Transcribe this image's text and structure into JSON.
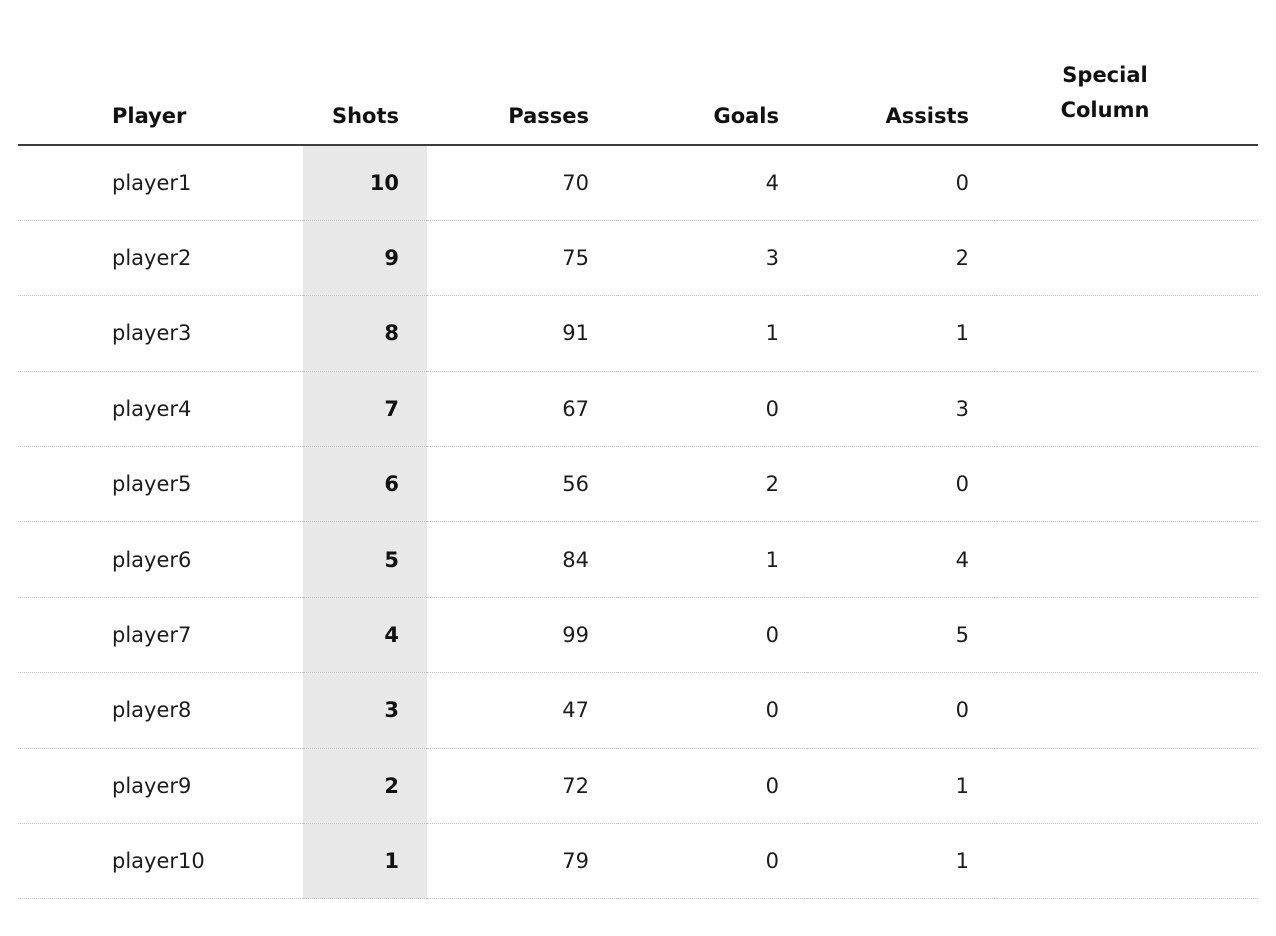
{
  "colors": {
    "highlight_column_bg": "#e8e8e8",
    "header_rule": "#3d3d3d",
    "row_divider": "#c4c4c4",
    "text": "#1c1c1c"
  },
  "table": {
    "columns": [
      {
        "key": "player",
        "label": "Player"
      },
      {
        "key": "shots",
        "label": "Shots"
      },
      {
        "key": "passes",
        "label": "Passes"
      },
      {
        "key": "goals",
        "label": "Goals"
      },
      {
        "key": "assists",
        "label": "Assists"
      },
      {
        "key": "special",
        "label": "Special\nColumn"
      }
    ],
    "rows": [
      {
        "player": "player1",
        "shots": "10",
        "passes": "70",
        "goals": "4",
        "assists": "0",
        "special": ""
      },
      {
        "player": "player2",
        "shots": "9",
        "passes": "75",
        "goals": "3",
        "assists": "2",
        "special": ""
      },
      {
        "player": "player3",
        "shots": "8",
        "passes": "91",
        "goals": "1",
        "assists": "1",
        "special": ""
      },
      {
        "player": "player4",
        "shots": "7",
        "passes": "67",
        "goals": "0",
        "assists": "3",
        "special": ""
      },
      {
        "player": "player5",
        "shots": "6",
        "passes": "56",
        "goals": "2",
        "assists": "0",
        "special": ""
      },
      {
        "player": "player6",
        "shots": "5",
        "passes": "84",
        "goals": "1",
        "assists": "4",
        "special": ""
      },
      {
        "player": "player7",
        "shots": "4",
        "passes": "99",
        "goals": "0",
        "assists": "5",
        "special": ""
      },
      {
        "player": "player8",
        "shots": "3",
        "passes": "47",
        "goals": "0",
        "assists": "0",
        "special": ""
      },
      {
        "player": "player9",
        "shots": "2",
        "passes": "72",
        "goals": "0",
        "assists": "1",
        "special": ""
      },
      {
        "player": "player10",
        "shots": "1",
        "passes": "79",
        "goals": "0",
        "assists": "1",
        "special": ""
      }
    ]
  },
  "chart_data": {
    "type": "table",
    "title": "",
    "columns": [
      "Player",
      "Shots",
      "Passes",
      "Goals",
      "Assists",
      "Special Column"
    ],
    "highlighted_column": "Shots",
    "rows": [
      [
        "player1",
        10,
        70,
        4,
        0,
        ""
      ],
      [
        "player2",
        9,
        75,
        3,
        2,
        ""
      ],
      [
        "player3",
        8,
        91,
        1,
        1,
        ""
      ],
      [
        "player4",
        7,
        67,
        0,
        3,
        ""
      ],
      [
        "player5",
        6,
        56,
        2,
        0,
        ""
      ],
      [
        "player6",
        5,
        84,
        1,
        4,
        ""
      ],
      [
        "player7",
        4,
        99,
        0,
        5,
        ""
      ],
      [
        "player8",
        3,
        47,
        0,
        0,
        ""
      ],
      [
        "player9",
        2,
        72,
        0,
        1,
        ""
      ],
      [
        "player10",
        1,
        79,
        0,
        1,
        ""
      ]
    ]
  }
}
